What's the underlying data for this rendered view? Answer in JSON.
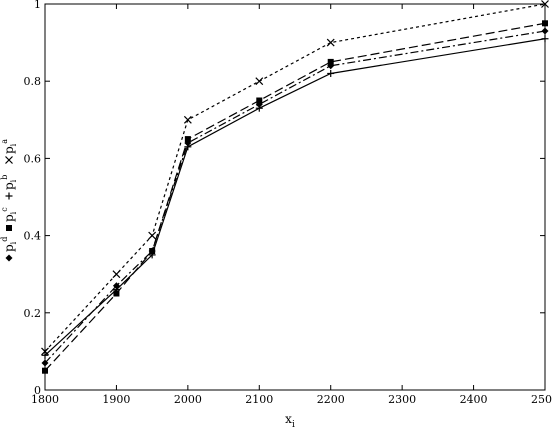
{
  "chart_data": {
    "type": "line",
    "xlabel": "x",
    "xlabel_sub": "i",
    "ylabel": "",
    "xlim": [
      1800,
      2500
    ],
    "ylim": [
      0,
      1
    ],
    "xticks": [
      1800,
      1900,
      2000,
      2100,
      2200,
      2300,
      2400,
      2500
    ],
    "xtick_labels": [
      "1800",
      "1900",
      "2000",
      "2100",
      "2200",
      "2300",
      "2400",
      "2500"
    ],
    "yticks": [
      0,
      0.2,
      0.4,
      0.6,
      0.8,
      1
    ],
    "ytick_labels": [
      "0",
      "0.2",
      "0.4",
      "0.6",
      "0.8",
      "1"
    ],
    "grid": false,
    "legend_position": "left",
    "x": [
      1800,
      1900,
      1950,
      2000,
      2100,
      2200,
      2500
    ],
    "series": [
      {
        "name": "p",
        "sup": "a",
        "sub": "i",
        "marker": "x",
        "dash": "dotted-dashed",
        "values": [
          0.1,
          0.3,
          0.4,
          0.7,
          0.8,
          0.9,
          1.0
        ]
      },
      {
        "name": "p",
        "sup": "b",
        "sub": "i",
        "marker": "plus",
        "dash": "solid",
        "values": [
          0.09,
          0.26,
          0.35,
          0.63,
          0.73,
          0.82,
          0.91
        ]
      },
      {
        "name": "p",
        "sup": "c",
        "sub": "i",
        "marker": "square",
        "dash": "long-dash",
        "values": [
          0.05,
          0.25,
          0.36,
          0.65,
          0.75,
          0.85,
          0.95
        ]
      },
      {
        "name": "p",
        "sup": "d",
        "sub": "i",
        "marker": "diamond",
        "dash": "dash-dot",
        "values": [
          0.07,
          0.27,
          0.36,
          0.64,
          0.74,
          0.84,
          0.93
        ]
      }
    ]
  }
}
